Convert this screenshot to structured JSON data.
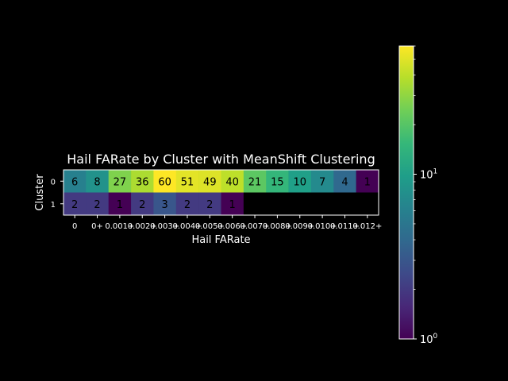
{
  "chart_data": {
    "type": "heatmap",
    "title": "Hail FARate by Cluster with MeanShift Clustering",
    "xlabel": "Hail FARate",
    "ylabel": "Cluster",
    "x_categories": [
      "0",
      "0+",
      "0.001+",
      "0.002+",
      "0.003+",
      "0.004+",
      "0.005+",
      "0.006+",
      "0.007+",
      "0.008+",
      "0.009+",
      "0.010+",
      "0.011+",
      "0.012+"
    ],
    "y_categories": [
      "0",
      "1"
    ],
    "values": [
      [
        6,
        8,
        27,
        36,
        60,
        51,
        49,
        40,
        21,
        15,
        10,
        7,
        4,
        1
      ],
      [
        2,
        2,
        1,
        2,
        3,
        2,
        2,
        1,
        null,
        null,
        null,
        null,
        null,
        null
      ]
    ],
    "colorbar": {
      "scale": "log",
      "range": [
        1,
        60
      ],
      "colormap": "viridis",
      "tick_labels": [
        "10^0",
        "10^1"
      ],
      "tick_values": [
        1,
        10
      ]
    },
    "missing_color": "#000000",
    "grid": false,
    "legend": "colorbar-right"
  }
}
